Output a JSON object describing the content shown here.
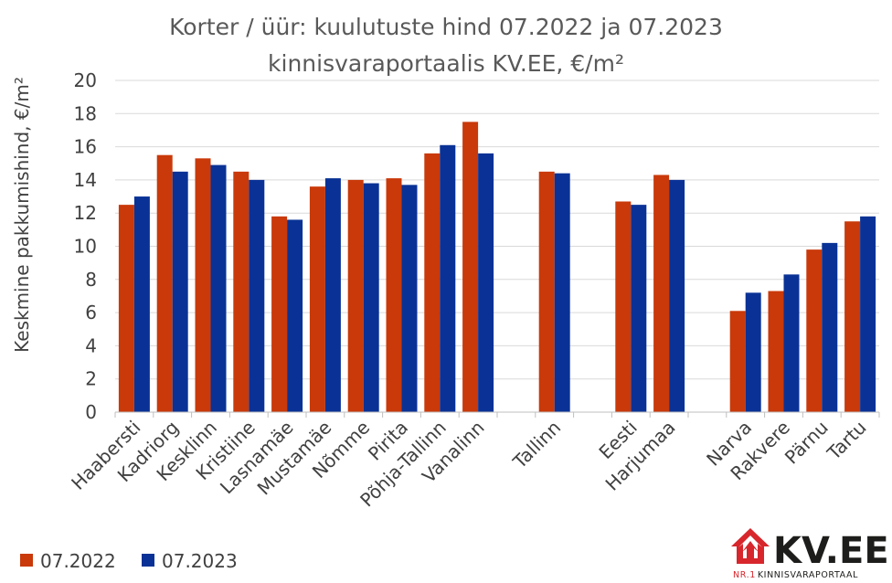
{
  "chart_data": {
    "type": "bar",
    "title_line1": "Korter / üür: kuulutuste hind 07.2022 ja 07.2023",
    "title_line2": "kinnisvaraportaalis KV.EE, €/m²",
    "ylabel": "Keskmine pakkumishind, €/m²",
    "ylim": [
      0,
      20
    ],
    "yticks": [
      "0",
      "2",
      "4",
      "6",
      "8",
      "10",
      "12",
      "14",
      "16",
      "18",
      "20"
    ],
    "grid": true,
    "legend_position": "bottom-left",
    "categories": [
      "Haabersti",
      "Kadriorg",
      "Kesklinn",
      "Kristiine",
      "Lasnamäe",
      "Mustamäe",
      "Nõmme",
      "Pirita",
      "Põhja-Tallinn",
      "Vanalinn",
      "",
      "Tallinn",
      "",
      "Eesti",
      "Harjumaa",
      "",
      "Narva",
      "Rakvere",
      "Pärnu",
      "Tartu"
    ],
    "series": [
      {
        "name": "07.2022",
        "color": "#c9390a",
        "values": [
          12.5,
          15.5,
          15.3,
          14.5,
          11.8,
          13.6,
          14.0,
          14.1,
          15.6,
          17.5,
          null,
          14.5,
          null,
          12.7,
          14.3,
          null,
          6.1,
          7.3,
          9.8,
          11.5
        ]
      },
      {
        "name": "07.2023",
        "color": "#0a3296",
        "values": [
          13.0,
          14.5,
          14.9,
          14.0,
          11.6,
          14.1,
          13.8,
          13.7,
          16.1,
          15.6,
          null,
          14.4,
          null,
          12.5,
          14.0,
          null,
          7.2,
          8.3,
          10.2,
          11.8
        ]
      }
    ]
  },
  "logo": {
    "name": "KV.EE",
    "tagline_prefix": "NR.1",
    "tagline_rest": "KINNISVARAPORTAAL",
    "color_red": "#d7262c"
  }
}
